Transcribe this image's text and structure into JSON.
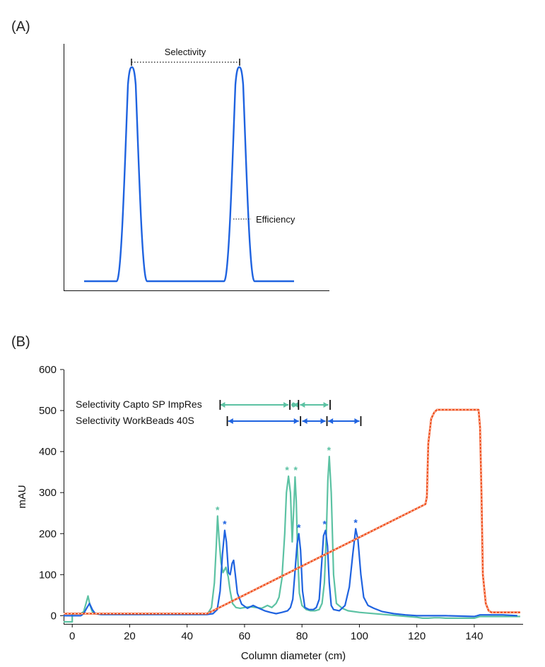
{
  "panel_a": {
    "label": "(A)",
    "annotations": {
      "selectivity": "Selectivity",
      "efficiency": "Efficiency"
    },
    "peak_color": "#1f63e0"
  },
  "panel_b": {
    "label": "(B)",
    "selectivity_labels": {
      "capto": "Selectivity Capto SP ImpRes",
      "workbeads": "Selectivity WorkBeads 40S"
    },
    "star_symbol": "*"
  },
  "chart_data": {
    "type": "line",
    "xlabel": "Column diameter (cm)",
    "ylabel": "mAU",
    "xlim": [
      -3,
      157
    ],
    "ylim": [
      -20,
      600
    ],
    "x_ticks": [
      0,
      20,
      40,
      60,
      80,
      100,
      120,
      140
    ],
    "y_ticks": [
      0,
      100,
      200,
      300,
      400,
      500,
      600
    ],
    "colors": {
      "capto": "#5cc2a3",
      "workbeads": "#1f63e0",
      "gradient": "#f0511f"
    },
    "series": [
      {
        "key": "capto",
        "x": [
          -3,
          0,
          0,
          3,
          4,
          4.8,
          5.5,
          6.2,
          7,
          8,
          10,
          20,
          30,
          40,
          45,
          47,
          48.5,
          49.5,
          50.2,
          50.6,
          51.1,
          51.8,
          52.5,
          53.5,
          54.3,
          55,
          55.8,
          57,
          58.5,
          60,
          62,
          64,
          66,
          68,
          69.5,
          71,
          72,
          73,
          74,
          74.6,
          75.3,
          76,
          76.6,
          77.2,
          77.6,
          78,
          78.5,
          79.1,
          80,
          81.5,
          83,
          84.5,
          86,
          87,
          87.8,
          88.5,
          89,
          89.5,
          90.2,
          91,
          92,
          94,
          96,
          100,
          110,
          120,
          122,
          124,
          126,
          128,
          130,
          140,
          141,
          142,
          143,
          144,
          145,
          150,
          156
        ],
        "y": [
          -15,
          -15,
          5,
          5,
          10,
          30,
          48,
          25,
          10,
          5,
          3,
          3,
          3,
          3,
          3,
          3,
          20,
          80,
          175,
          243,
          190,
          130,
          105,
          118,
          95,
          60,
          30,
          20,
          18,
          20,
          22,
          20,
          18,
          25,
          20,
          30,
          45,
          90,
          200,
          300,
          340,
          300,
          180,
          270,
          338,
          280,
          150,
          55,
          25,
          15,
          12,
          12,
          15,
          30,
          80,
          200,
          330,
          388,
          300,
          100,
          30,
          18,
          12,
          8,
          2,
          -4,
          -6,
          -6,
          -5,
          -5,
          -6,
          -6,
          -4,
          -2,
          -2,
          -2,
          -2,
          -2,
          -2
        ]
      },
      {
        "key": "workbeads",
        "x": [
          -3,
          3,
          4,
          5,
          6,
          7,
          8,
          10,
          20,
          30,
          40,
          45,
          47,
          49,
          50.5,
          51.5,
          52.3,
          53.1,
          53.7,
          54.4,
          55,
          55.7,
          56.2,
          56.8,
          57.5,
          59,
          61,
          63,
          65,
          67,
          69,
          71,
          73,
          75,
          76,
          76.8,
          77.5,
          78.3,
          78.9,
          79.5,
          80.2,
          81,
          82.5,
          84,
          85,
          86,
          86.8,
          87.5,
          88.2,
          88.9,
          89.5,
          90.2,
          91,
          93,
          95,
          96.5,
          97.7,
          98.7,
          99.5,
          100.5,
          101.5,
          103,
          105,
          108,
          112,
          116,
          120,
          122,
          124,
          126,
          130,
          140,
          141,
          142,
          143,
          144,
          145,
          150,
          155
        ],
        "y": [
          0,
          0,
          5,
          18,
          30,
          15,
          5,
          3,
          3,
          3,
          3,
          3,
          3,
          5,
          15,
          60,
          150,
          208,
          180,
          105,
          100,
          128,
          135,
          100,
          55,
          28,
          18,
          25,
          18,
          12,
          8,
          5,
          8,
          12,
          20,
          40,
          100,
          175,
          200,
          160,
          60,
          20,
          15,
          15,
          20,
          40,
          120,
          195,
          208,
          170,
          80,
          25,
          15,
          12,
          25,
          70,
          150,
          212,
          185,
          100,
          45,
          25,
          18,
          10,
          5,
          2,
          0,
          0,
          0,
          0,
          0,
          -2,
          0,
          2,
          2,
          2,
          2,
          2,
          0
        ]
      },
      {
        "key": "gradient",
        "x": [
          -3,
          47,
          123,
          123.5,
          124,
          125,
          126,
          127,
          141.5,
          142,
          142.5,
          143,
          144,
          145,
          146,
          150,
          156
        ],
        "y": [
          5,
          5,
          272,
          290,
          420,
          480,
          495,
          502,
          502,
          460,
          300,
          100,
          30,
          12,
          8,
          8,
          8
        ]
      }
    ],
    "selectivity_bars": [
      {
        "series": "capto",
        "ticks": [
          51.5,
          75.8,
          78.8,
          89.8
        ],
        "arrows": [
          [
            51.5,
            75.3
          ],
          [
            77,
            78.6
          ],
          [
            79.3,
            89.2
          ]
        ],
        "dots": [
          77
        ]
      },
      {
        "series": "workbeads",
        "ticks": [
          54,
          79.5,
          88.7,
          100.5
        ],
        "arrows": [
          [
            54.3,
            78.9
          ],
          [
            80.1,
            88.2
          ],
          [
            89.1,
            100.0
          ]
        ],
        "dots": []
      }
    ],
    "star_markers": [
      {
        "series": "capto",
        "x": [
          50.6,
          74.8,
          77.8,
          89.4
        ],
        "y": [
          243,
          340,
          340,
          388
        ]
      },
      {
        "series": "workbeads",
        "x": [
          53.1,
          78.9,
          87.9,
          98.7
        ],
        "y": [
          208,
          200,
          208,
          212
        ]
      }
    ]
  }
}
